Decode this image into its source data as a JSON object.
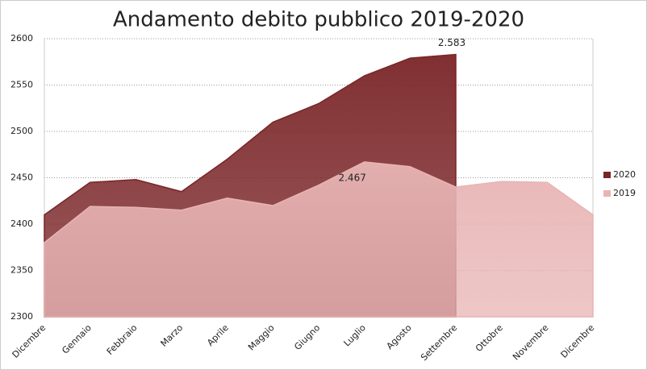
{
  "chart_data": {
    "type": "area",
    "title": "Andamento debito pubblico 2019-2020",
    "categories": [
      "Dicembre",
      "Gennaio",
      "Febbraio",
      "Marzo",
      "Aprile",
      "Maggio",
      "Giugno",
      "Luglio",
      "Agosto",
      "Settembre",
      "Ottobre",
      "Novembre",
      "Dicembre"
    ],
    "series": [
      {
        "name": "2020",
        "color": "#7a2527",
        "values": [
          2410,
          2445,
          2448,
          2435,
          2470,
          2510,
          2530,
          2560,
          2579,
          2583,
          null,
          null,
          null
        ],
        "value_labels": [
          null,
          null,
          null,
          null,
          null,
          null,
          null,
          null,
          null,
          "2.583",
          null,
          null,
          null
        ]
      },
      {
        "name": "2019",
        "color": "#e8b4b4",
        "values": [
          2380,
          2419,
          2418,
          2415,
          2428,
          2420,
          2442,
          2467,
          2462,
          2440,
          2446,
          2445,
          2410
        ],
        "value_labels": [
          null,
          null,
          null,
          null,
          null,
          null,
          null,
          "2.467",
          null,
          null,
          null,
          null,
          null
        ]
      }
    ],
    "ylim": [
      2300,
      2600
    ],
    "yticks": [
      2300,
      2350,
      2400,
      2450,
      2500,
      2550,
      2600
    ],
    "grid": true,
    "legend": "right"
  }
}
